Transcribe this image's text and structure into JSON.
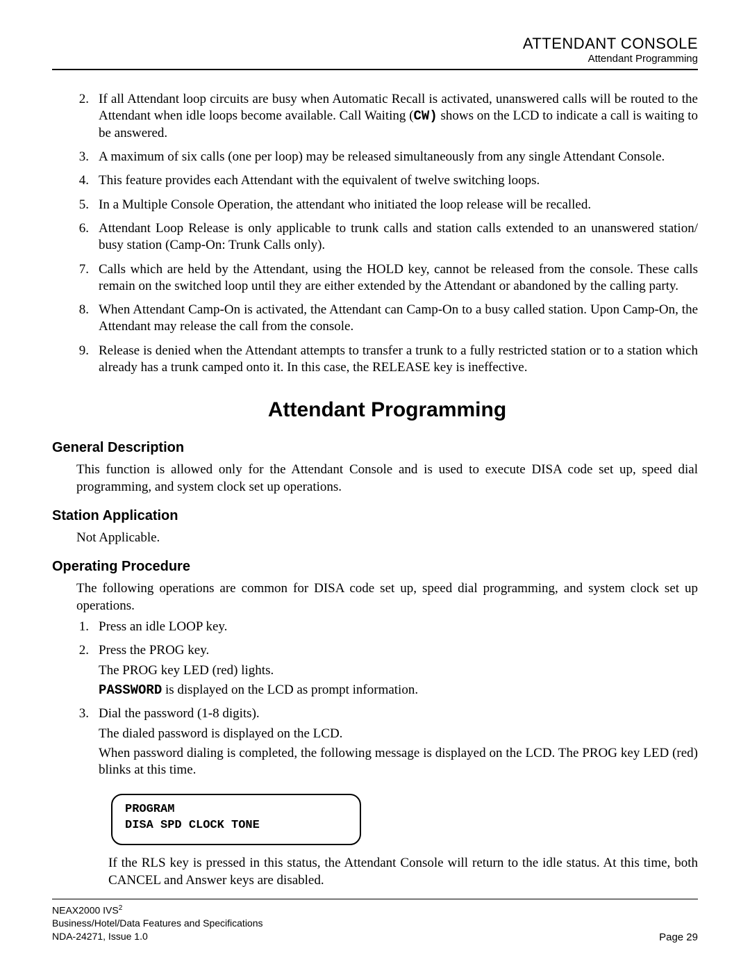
{
  "header": {
    "title": "ATTENDANT CONSOLE",
    "subtitle": "Attendant Programming"
  },
  "top_list": [
    {
      "n": "2.",
      "paras": [
        "If all Attendant loop circuits are busy when Automatic Recall is activated, unanswered calls will be routed to the Attendant when idle loops become available. Call Waiting (<span class=\"mono\">CW)</span>  shows on the LCD to indicate a call is waiting to be answered."
      ]
    },
    {
      "n": "3.",
      "paras": [
        "A maximum of six calls (one per loop) may be released simultaneously from any single Attendant Console."
      ]
    },
    {
      "n": "4.",
      "paras": [
        "This feature provides each Attendant with the equivalent of twelve switching loops."
      ]
    },
    {
      "n": "5.",
      "paras": [
        "In a Multiple Console Operation, the attendant who initiated the loop release will be recalled."
      ]
    },
    {
      "n": "6.",
      "paras": [
        "Attendant Loop Release is only applicable to trunk calls and station calls extended to an unanswered station/ busy station (Camp-On: Trunk Calls only)."
      ]
    },
    {
      "n": "7.",
      "paras": [
        "Calls which are held by the Attendant, using the HOLD key, cannot be released from the console. These calls remain on the switched loop until they are either extended by the Attendant or abandoned by the calling party."
      ]
    },
    {
      "n": "8.",
      "paras": [
        "When Attendant Camp-On is activated, the Attendant can Camp-On to a busy called station. Upon Camp-On, the Attendant may release the call from the console."
      ]
    },
    {
      "n": "9.",
      "paras": [
        "Release is denied when the Attendant attempts to transfer a trunk to a fully restricted station or to a station which already has a trunk camped onto it. In this case, the RELEASE key is ineffective."
      ]
    }
  ],
  "section_title": "Attendant Programming",
  "general": {
    "heading": "General Description",
    "body": "This function is allowed only for the Attendant Console and is used to execute DISA code set up, speed dial programming, and system clock set up operations."
  },
  "station": {
    "heading": "Station Application",
    "body": "Not Applicable."
  },
  "operating": {
    "heading": "Operating Procedure",
    "intro": "The following operations are common for DISA code set up, speed dial programming, and system clock set up operations.",
    "steps": [
      {
        "n": "1.",
        "paras": [
          "Press an idle LOOP key."
        ]
      },
      {
        "n": "2.",
        "paras": [
          "Press the PROG key.",
          "The PROG key LED (red) lights.",
          "<span class=\"mono\">PASSWORD</span> is displayed on the LCD as prompt information."
        ]
      },
      {
        "n": "3.",
        "paras": [
          "Dial the password (1-8 digits).",
          "The dialed password is displayed on the LCD.",
          "When password dialing is completed, the following message is displayed on the LCD. The PROG key LED (red) blinks at this time."
        ]
      }
    ],
    "lcd": {
      "line1": "PROGRAM",
      "line2": "DISA SPD CLOCK TONE"
    },
    "after": "If the RLS key is pressed in this status, the Attendant Console will return to the idle status. At this time, both CANCEL and Answer keys are disabled."
  },
  "footer": {
    "product_prefix": "NEAX2000 IVS",
    "product_sup": "2",
    "line2": "Business/Hotel/Data Features and Specifications",
    "line3": "NDA-24271, Issue 1.0",
    "page": "Page 29"
  }
}
